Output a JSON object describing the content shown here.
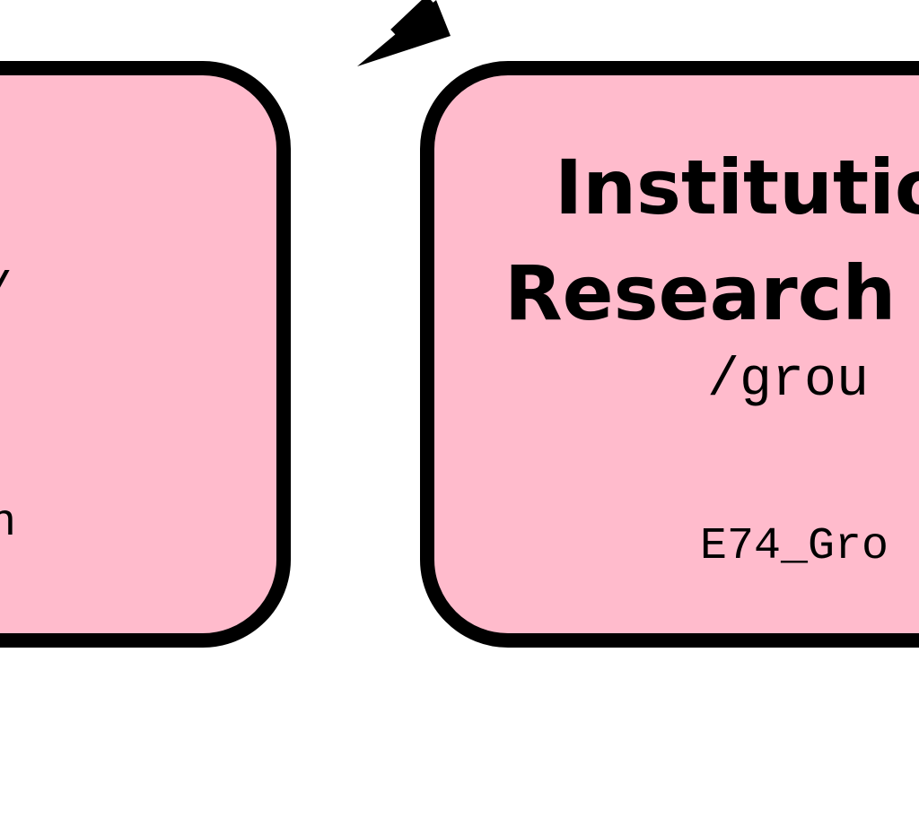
{
  "nodes": {
    "left": {
      "path_fragment": "/",
      "class_fragment": "n"
    },
    "right": {
      "title_line1": "Institutio",
      "title_line2": "Research",
      "path": "/grou",
      "class_label": "E74_Gro"
    }
  },
  "colors": {
    "node_fill": "#ffbbcc",
    "stroke": "#000000",
    "text": "#000000"
  }
}
